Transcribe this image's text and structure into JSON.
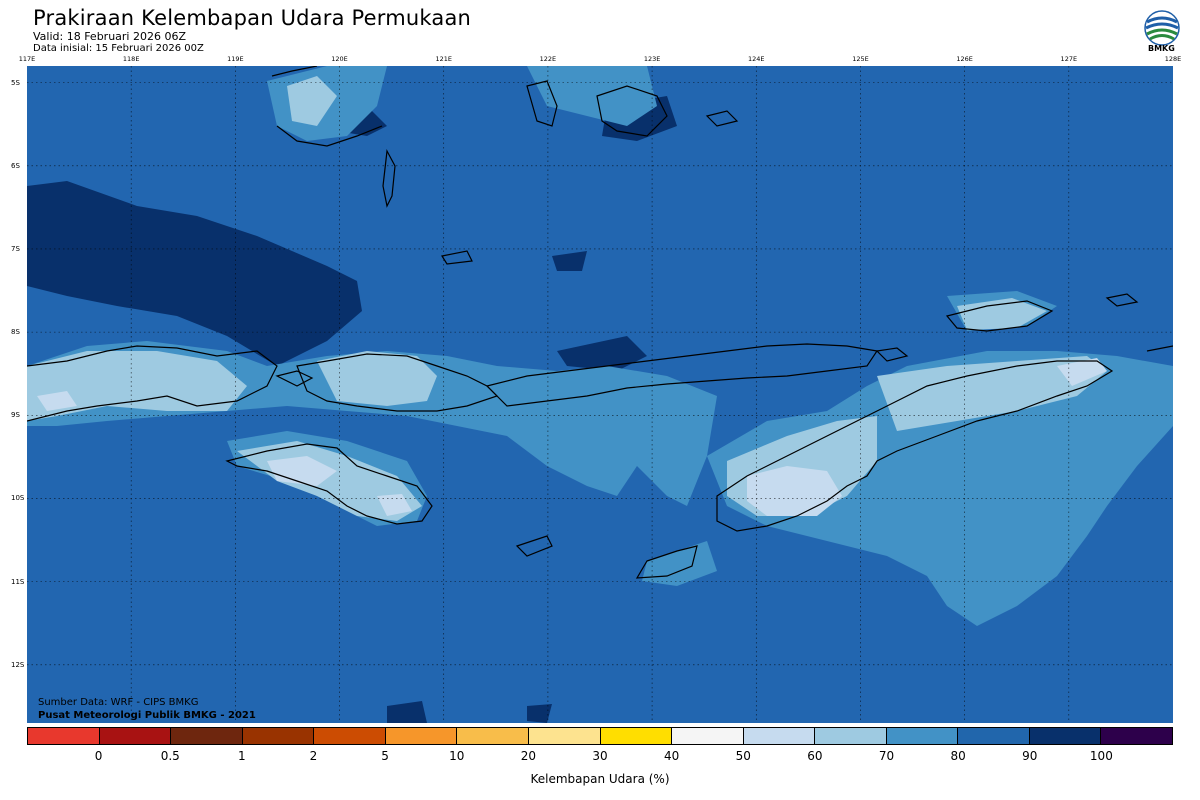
{
  "header": {
    "title": "Prakiraan Kelembapan Udara Permukaan",
    "valid": "Valid: 18 Februari 2026 06Z",
    "initial": "Data inisial: 15 Februari 2026 00Z"
  },
  "logo": {
    "label": "BMKG",
    "icon": "bmkg-logo-icon"
  },
  "map": {
    "lon_ticks": [
      "117E",
      "118E",
      "119E",
      "120E",
      "121E",
      "122E",
      "123E",
      "124E",
      "125E",
      "126E",
      "127E",
      "128E"
    ],
    "lat_ticks": [
      "5S",
      "6S",
      "7S",
      "8S",
      "9S",
      "10S",
      "11S",
      "12S"
    ],
    "lon_range": [
      117,
      128
    ],
    "lat_range": [
      -4.8,
      -12.7
    ],
    "base_humidity_class": "80-90",
    "colors": {
      "ocean_base": "#2266B0",
      "very_humid": "#08306B",
      "mid": "#4292C6",
      "light": "#9ECAE1",
      "lighter": "#C6DBEF"
    }
  },
  "credits": {
    "source": "Sumber Data: WRF - CIPS BMKG",
    "org": "Pusat Meteorologi Publik BMKG - 2021"
  },
  "legend": {
    "title": "Kelembapan Udara (%)",
    "labels": [
      "0",
      "0.5",
      "1",
      "2",
      "5",
      "10",
      "20",
      "30",
      "40",
      "50",
      "60",
      "70",
      "80",
      "90",
      "100"
    ],
    "colors": [
      "#E8382D",
      "#A81212",
      "#6E260E",
      "#993300",
      "#CC4C02",
      "#F6962A",
      "#F8BD4A",
      "#FDE38F",
      "#FFDE00",
      "#F5F5F5",
      "#C6DBEF",
      "#9ECAE1",
      "#4292C6",
      "#2166AC",
      "#08306B",
      "#2D004B"
    ]
  }
}
